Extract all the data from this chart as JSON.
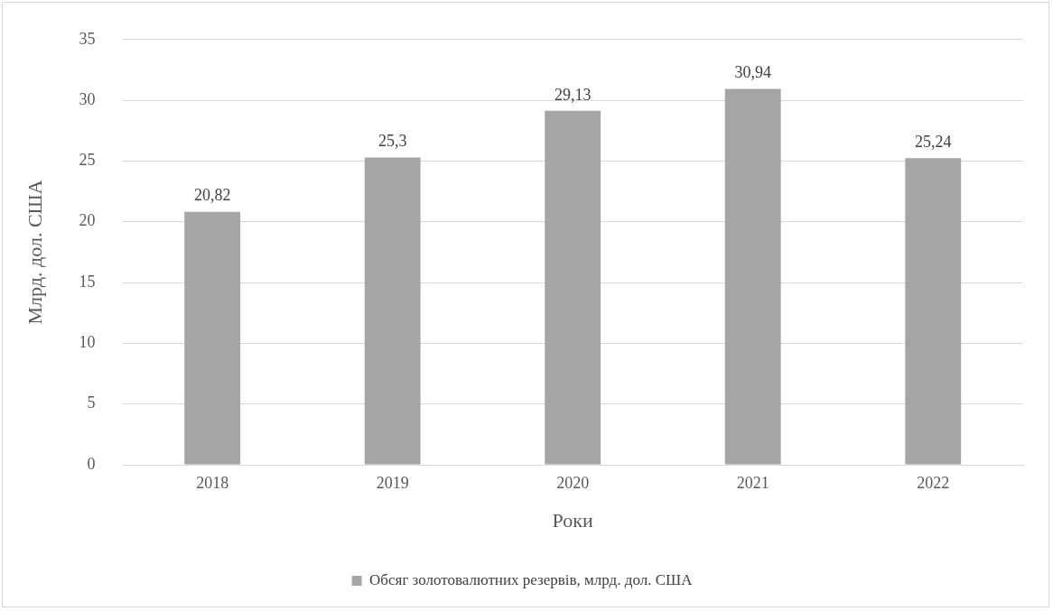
{
  "chart_data": {
    "type": "bar",
    "xlabel": "Роки",
    "ylabel": "Млрд. дол. США",
    "categories": [
      "2018",
      "2019",
      "2020",
      "2021",
      "2022"
    ],
    "series": [
      {
        "name": "Обсяг золотовалютних резервів, млрд. дол. США",
        "color": "#a5a5a5",
        "values": [
          20.82,
          25.3,
          29.13,
          30.94,
          25.24
        ],
        "value_labels": [
          "20,82",
          "25,3",
          "29,13",
          "30,94",
          "25,24"
        ]
      }
    ],
    "ylim": [
      0,
      35
    ],
    "yticks": [
      0,
      5,
      10,
      15,
      20,
      25,
      30,
      35
    ],
    "grid": "y",
    "legend": "bottom"
  }
}
